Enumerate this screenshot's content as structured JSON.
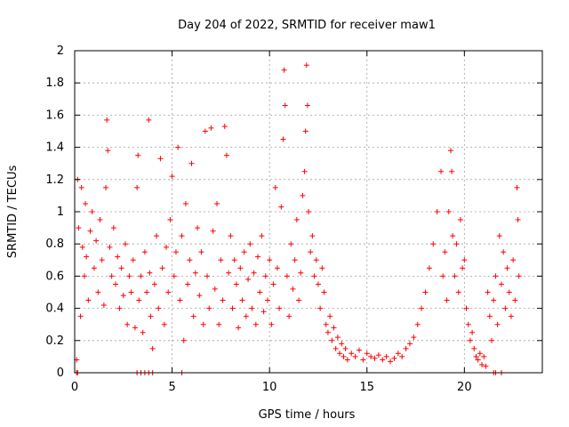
{
  "chart_data": {
    "type": "scatter",
    "title": "Day 204 of 2022, SRMTID for receiver maw1",
    "xlabel": "GPS time / hours",
    "ylabel": "SRMTID / TECUs",
    "xlim": [
      0,
      24
    ],
    "ylim": [
      0,
      2
    ],
    "xticks": [
      0,
      5,
      10,
      15,
      20
    ],
    "yticks": [
      0,
      0.2,
      0.4,
      0.6,
      0.8,
      1,
      1.2,
      1.4,
      1.6,
      1.8,
      2
    ],
    "xtick_labels": [
      "0",
      "5",
      "10",
      "15",
      "20"
    ],
    "ytick_labels": [
      "0",
      "0.2",
      "0.4",
      "0.6",
      "0.8",
      "1",
      "1.2",
      "1.4",
      "1.6",
      "1.8",
      "2"
    ],
    "grid": true,
    "marker": "+",
    "color": "#ff0000",
    "series": [
      {
        "name": "SRMTID",
        "points": [
          [
            0.1,
            0.08
          ],
          [
            0.15,
            1.2
          ],
          [
            0.2,
            0.9
          ],
          [
            0.3,
            0.35
          ],
          [
            0.35,
            1.15
          ],
          [
            0.4,
            0.78
          ],
          [
            0.5,
            0.6
          ],
          [
            0.55,
            1.05
          ],
          [
            0.6,
            0.72
          ],
          [
            0.7,
            0.45
          ],
          [
            0.8,
            0.88
          ],
          [
            0.9,
            1.0
          ],
          [
            1.0,
            0.65
          ],
          [
            1.1,
            0.82
          ],
          [
            1.2,
            0.5
          ],
          [
            1.3,
            0.95
          ],
          [
            1.4,
            0.7
          ],
          [
            1.5,
            0.42
          ],
          [
            1.6,
            1.15
          ],
          [
            1.65,
            1.57
          ],
          [
            1.7,
            1.38
          ],
          [
            1.8,
            0.78
          ],
          [
            1.9,
            0.6
          ],
          [
            2.0,
            0.9
          ],
          [
            2.1,
            0.55
          ],
          [
            2.2,
            0.72
          ],
          [
            2.3,
            0.4
          ],
          [
            2.4,
            0.65
          ],
          [
            2.5,
            0.48
          ],
          [
            2.6,
            0.8
          ],
          [
            2.7,
            0.3
          ],
          [
            2.8,
            0.6
          ],
          [
            2.9,
            0.5
          ],
          [
            3.0,
            0.7
          ],
          [
            3.1,
            0.28
          ],
          [
            3.2,
            1.15
          ],
          [
            3.25,
            1.35
          ],
          [
            3.3,
            0.45
          ],
          [
            3.4,
            0.6
          ],
          [
            3.5,
            0.25
          ],
          [
            3.6,
            0.75
          ],
          [
            3.7,
            0.5
          ],
          [
            3.8,
            1.57
          ],
          [
            3.85,
            0.62
          ],
          [
            3.9,
            0.35
          ],
          [
            4.0,
            0.15
          ],
          [
            4.1,
            0.55
          ],
          [
            4.2,
            0.85
          ],
          [
            4.3,
            0.4
          ],
          [
            4.4,
            1.33
          ],
          [
            4.5,
            0.65
          ],
          [
            4.6,
            0.3
          ],
          [
            4.7,
            0.78
          ],
          [
            4.8,
            0.5
          ],
          [
            4.9,
            0.95
          ],
          [
            5.0,
            1.22
          ],
          [
            5.1,
            0.6
          ],
          [
            5.2,
            0.75
          ],
          [
            5.3,
            1.4
          ],
          [
            5.4,
            0.45
          ],
          [
            5.5,
            0.85
          ],
          [
            5.6,
            0.2
          ],
          [
            5.7,
            1.05
          ],
          [
            5.8,
            0.55
          ],
          [
            5.9,
            0.7
          ],
          [
            6.0,
            1.3
          ],
          [
            6.1,
            0.35
          ],
          [
            6.2,
            0.62
          ],
          [
            6.3,
            0.9
          ],
          [
            6.4,
            0.48
          ],
          [
            6.5,
            0.75
          ],
          [
            6.6,
            0.3
          ],
          [
            6.7,
            1.5
          ],
          [
            6.8,
            0.6
          ],
          [
            6.9,
            0.4
          ],
          [
            7.0,
            1.52
          ],
          [
            7.1,
            0.88
          ],
          [
            7.2,
            0.52
          ],
          [
            7.3,
            1.05
          ],
          [
            7.4,
            0.3
          ],
          [
            7.5,
            0.7
          ],
          [
            7.6,
            0.45
          ],
          [
            7.7,
            1.53
          ],
          [
            7.8,
            1.35
          ],
          [
            7.9,
            0.62
          ],
          [
            8.0,
            0.85
          ],
          [
            8.1,
            0.4
          ],
          [
            8.2,
            0.7
          ],
          [
            8.3,
            0.55
          ],
          [
            8.4,
            0.28
          ],
          [
            8.5,
            0.65
          ],
          [
            8.6,
            0.45
          ],
          [
            8.7,
            0.75
          ],
          [
            8.8,
            0.35
          ],
          [
            8.9,
            0.58
          ],
          [
            9.0,
            0.8
          ],
          [
            9.1,
            0.4
          ],
          [
            9.2,
            0.62
          ],
          [
            9.3,
            0.3
          ],
          [
            9.4,
            0.72
          ],
          [
            9.5,
            0.5
          ],
          [
            9.6,
            0.85
          ],
          [
            9.7,
            0.38
          ],
          [
            9.8,
            0.6
          ],
          [
            9.9,
            0.45
          ],
          [
            10.0,
            0.7
          ],
          [
            10.1,
            0.3
          ],
          [
            10.2,
            0.55
          ],
          [
            10.3,
            1.15
          ],
          [
            10.4,
            0.65
          ],
          [
            10.5,
            0.4
          ],
          [
            10.6,
            1.03
          ],
          [
            10.7,
            1.45
          ],
          [
            10.75,
            1.88
          ],
          [
            10.8,
            1.66
          ],
          [
            10.9,
            0.6
          ],
          [
            11.0,
            0.35
          ],
          [
            11.1,
            0.8
          ],
          [
            11.2,
            0.52
          ],
          [
            11.3,
            0.7
          ],
          [
            11.4,
            0.95
          ],
          [
            11.5,
            0.45
          ],
          [
            11.6,
            0.62
          ],
          [
            11.7,
            1.1
          ],
          [
            11.8,
            1.25
          ],
          [
            11.85,
            1.5
          ],
          [
            11.9,
            1.91
          ],
          [
            11.95,
            1.66
          ],
          [
            12.0,
            1.0
          ],
          [
            12.1,
            0.75
          ],
          [
            12.2,
            0.85
          ],
          [
            12.3,
            0.6
          ],
          [
            12.4,
            0.7
          ],
          [
            12.5,
            0.55
          ],
          [
            12.6,
            0.4
          ],
          [
            12.7,
            0.65
          ],
          [
            12.8,
            0.5
          ],
          [
            12.9,
            0.3
          ],
          [
            13.0,
            0.25
          ],
          [
            13.1,
            0.35
          ],
          [
            13.2,
            0.2
          ],
          [
            13.3,
            0.28
          ],
          [
            13.4,
            0.15
          ],
          [
            13.5,
            0.22
          ],
          [
            13.6,
            0.12
          ],
          [
            13.7,
            0.18
          ],
          [
            13.8,
            0.1
          ],
          [
            13.9,
            0.15
          ],
          [
            14.0,
            0.08
          ],
          [
            14.2,
            0.12
          ],
          [
            14.4,
            0.1
          ],
          [
            14.6,
            0.14
          ],
          [
            14.8,
            0.08
          ],
          [
            15.0,
            0.12
          ],
          [
            15.2,
            0.1
          ],
          [
            15.4,
            0.09
          ],
          [
            15.6,
            0.11
          ],
          [
            15.8,
            0.08
          ],
          [
            16.0,
            0.1
          ],
          [
            16.2,
            0.07
          ],
          [
            16.4,
            0.09
          ],
          [
            16.6,
            0.12
          ],
          [
            16.8,
            0.1
          ],
          [
            17.0,
            0.15
          ],
          [
            17.2,
            0.18
          ],
          [
            17.4,
            0.22
          ],
          [
            17.6,
            0.3
          ],
          [
            17.8,
            0.4
          ],
          [
            18.0,
            0.5
          ],
          [
            18.2,
            0.65
          ],
          [
            18.4,
            0.8
          ],
          [
            18.6,
            1.0
          ],
          [
            18.8,
            1.25
          ],
          [
            18.9,
            0.6
          ],
          [
            19.0,
            0.75
          ],
          [
            19.1,
            0.45
          ],
          [
            19.2,
            1.0
          ],
          [
            19.3,
            1.38
          ],
          [
            19.35,
            1.25
          ],
          [
            19.4,
            0.85
          ],
          [
            19.5,
            0.6
          ],
          [
            19.6,
            0.8
          ],
          [
            19.7,
            0.5
          ],
          [
            19.8,
            0.95
          ],
          [
            19.9,
            0.65
          ],
          [
            20.0,
            0.7
          ],
          [
            20.1,
            0.4
          ],
          [
            20.2,
            0.3
          ],
          [
            20.3,
            0.2
          ],
          [
            20.4,
            0.25
          ],
          [
            20.5,
            0.15
          ],
          [
            20.6,
            0.1
          ],
          [
            20.7,
            0.08
          ],
          [
            20.8,
            0.12
          ],
          [
            20.9,
            0.05
          ],
          [
            21.0,
            0.1
          ],
          [
            21.1,
            0.04
          ],
          [
            21.2,
            0.5
          ],
          [
            21.3,
            0.35
          ],
          [
            21.4,
            0.2
          ],
          [
            21.5,
            0.45
          ],
          [
            21.6,
            0.6
          ],
          [
            21.7,
            0.3
          ],
          [
            21.8,
            0.85
          ],
          [
            21.9,
            0.55
          ],
          [
            22.0,
            0.75
          ],
          [
            22.1,
            0.4
          ],
          [
            22.2,
            0.65
          ],
          [
            22.3,
            0.5
          ],
          [
            22.4,
            0.35
          ],
          [
            22.5,
            0.7
          ],
          [
            22.6,
            0.45
          ],
          [
            22.7,
            1.15
          ],
          [
            22.75,
            0.95
          ],
          [
            22.8,
            0.6
          ]
        ],
        "zero_points": [
          0.1,
          0.15,
          3.2,
          3.4,
          3.6,
          3.8,
          4.0,
          5.5,
          21.5,
          21.6,
          21.9
        ]
      }
    ]
  }
}
